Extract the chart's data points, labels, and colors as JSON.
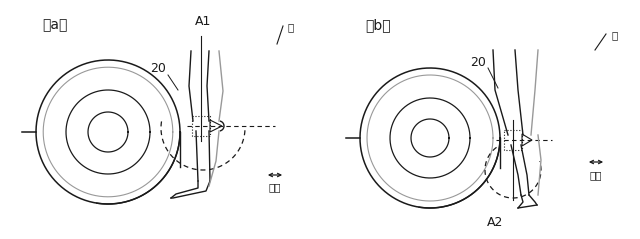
{
  "figure_width": 6.4,
  "figure_height": 2.39,
  "dpi": 100,
  "background_color": "#ffffff",
  "label_a": "（a）",
  "label_b": "（b）",
  "label_20_a": "20",
  "label_20_b": "20",
  "label_A1": "A1",
  "label_A2": "A2",
  "label_leg": "脚",
  "label_maego": "前後",
  "line_color": "#1a1a1a",
  "dashed_color": "#1a1a1a",
  "gray_color": "#999999"
}
